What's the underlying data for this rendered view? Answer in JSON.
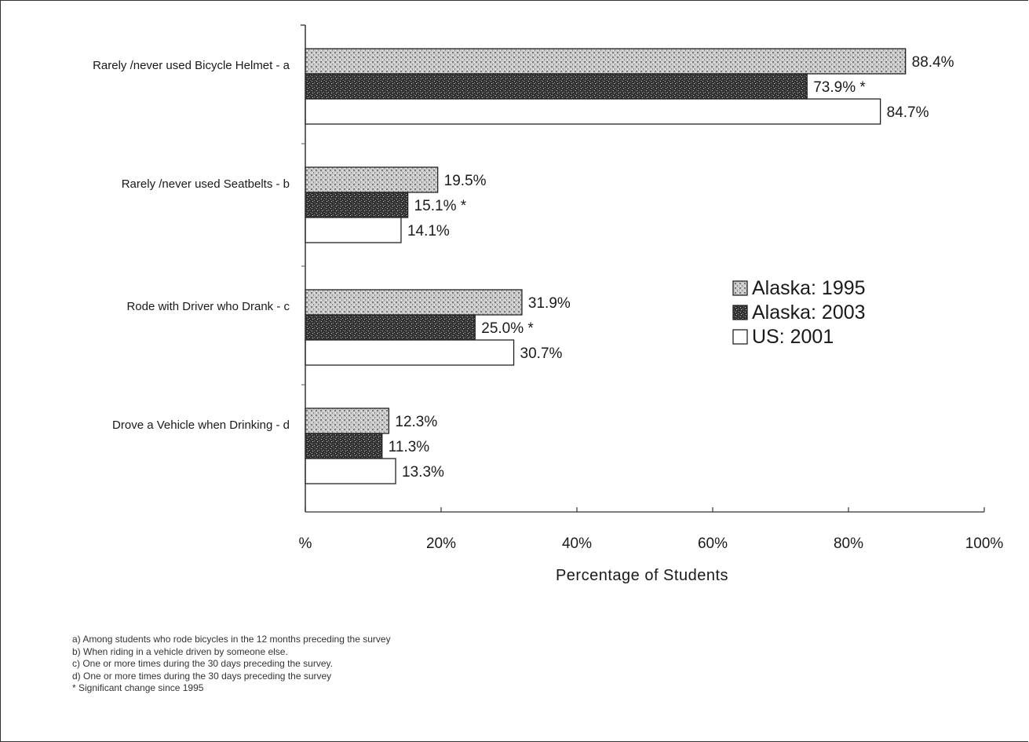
{
  "chart_data": {
    "type": "bar",
    "orientation": "horizontal",
    "title": "",
    "xlabel": "Percentage of Students",
    "ylabel": "",
    "xlim": [
      0,
      100
    ],
    "x_ticks": [
      0,
      20,
      40,
      60,
      80,
      100
    ],
    "x_tick_labels": [
      "%",
      "20%",
      "40%",
      "60%",
      "80%",
      "100%"
    ],
    "grid": false,
    "legend_position": "right",
    "categories": [
      "Rarely /never used Bicycle Helmet - a",
      "Rarely /never used Seatbelts - b",
      "Rode with Driver who Drank - c",
      "Drove a Vehicle when Drinking - d"
    ],
    "series": [
      {
        "name": "Alaska: 1995",
        "color": "#c4c4c4",
        "values": [
          88.4,
          19.5,
          31.9,
          12.3
        ],
        "labels": [
          "88.4%",
          "19.5%",
          "31.9%",
          "12.3%"
        ]
      },
      {
        "name": "Alaska: 2003",
        "color": "#3a3a3a",
        "values": [
          73.9,
          15.1,
          25.0,
          11.3
        ],
        "labels": [
          "73.9% *",
          "15.1% *",
          "25.0% *",
          "11.3%"
        ]
      },
      {
        "name": "US: 2001",
        "color": "#ffffff",
        "values": [
          84.7,
          14.1,
          30.7,
          13.3
        ],
        "labels": [
          "84.7%",
          "14.1%",
          "30.7%",
          "13.3%"
        ]
      }
    ]
  },
  "footnotes": [
    "a) Among students who rode bicycles in the 12 months preceding the survey",
    "b) When riding in a vehicle driven by someone else.",
    "c) One or more times during the 30 days preceding the survey.",
    "d) One or more times during the 30 days preceding the survey",
    "* Significant change since 1995"
  ]
}
